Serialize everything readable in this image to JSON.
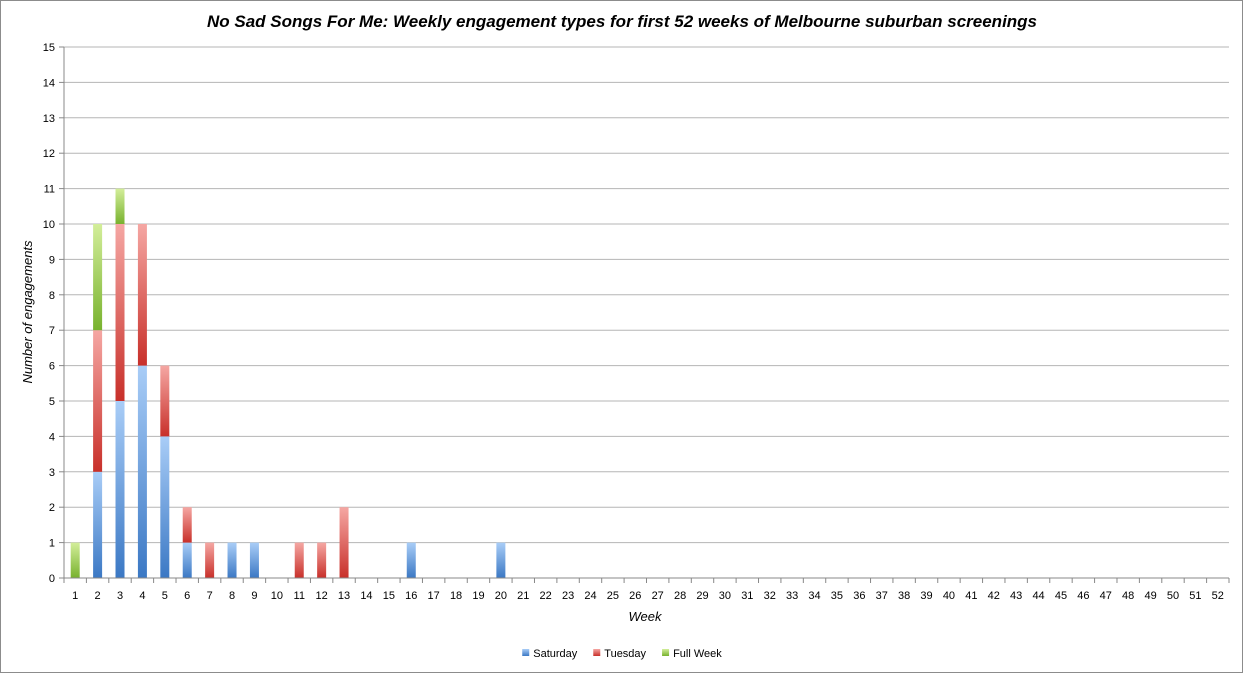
{
  "chart_data": {
    "type": "bar",
    "stacked": true,
    "title": "No Sad Songs For Me: Weekly engagement types for first 52 weeks of Melbourne suburban screenings",
    "xlabel": "Week",
    "ylabel": "Number of engagements",
    "ylim": [
      0,
      15
    ],
    "yticks": [
      0,
      1,
      2,
      3,
      4,
      5,
      6,
      7,
      8,
      9,
      10,
      11,
      12,
      13,
      14,
      15
    ],
    "grid": true,
    "legend_position": "bottom",
    "categories": [
      "1",
      "2",
      "3",
      "4",
      "5",
      "6",
      "7",
      "8",
      "9",
      "10",
      "11",
      "12",
      "13",
      "14",
      "15",
      "16",
      "17",
      "18",
      "19",
      "20",
      "21",
      "22",
      "23",
      "24",
      "25",
      "26",
      "27",
      "28",
      "29",
      "30",
      "31",
      "32",
      "33",
      "34",
      "35",
      "36",
      "37",
      "38",
      "39",
      "40",
      "41",
      "42",
      "43",
      "44",
      "45",
      "46",
      "47",
      "48",
      "49",
      "50",
      "51",
      "52"
    ],
    "series": [
      {
        "name": "Saturday",
        "color": "#4a86d0",
        "values": [
          0,
          3,
          5,
          6,
          4,
          1,
          0,
          1,
          1,
          0,
          0,
          0,
          0,
          0,
          0,
          1,
          0,
          0,
          0,
          1,
          0,
          0,
          0,
          0,
          0,
          0,
          0,
          0,
          0,
          0,
          0,
          0,
          0,
          0,
          0,
          0,
          0,
          0,
          0,
          0,
          0,
          0,
          0,
          0,
          0,
          0,
          0,
          0,
          0,
          0,
          0,
          0
        ]
      },
      {
        "name": "Tuesday",
        "color": "#d9463f",
        "values": [
          0,
          4,
          5,
          4,
          2,
          1,
          1,
          0,
          0,
          0,
          1,
          1,
          2,
          0,
          0,
          0,
          0,
          0,
          0,
          0,
          0,
          0,
          0,
          0,
          0,
          0,
          0,
          0,
          0,
          0,
          0,
          0,
          0,
          0,
          0,
          0,
          0,
          0,
          0,
          0,
          0,
          0,
          0,
          0,
          0,
          0,
          0,
          0,
          0,
          0,
          0,
          0
        ]
      },
      {
        "name": "Full Week",
        "color": "#8cc43f",
        "values": [
          1,
          3,
          1,
          0,
          0,
          0,
          0,
          0,
          0,
          0,
          0,
          0,
          0,
          0,
          0,
          0,
          0,
          0,
          0,
          0,
          0,
          0,
          0,
          0,
          0,
          0,
          0,
          0,
          0,
          0,
          0,
          0,
          0,
          0,
          0,
          0,
          0,
          0,
          0,
          0,
          0,
          0,
          0,
          0,
          0,
          0,
          0,
          0,
          0,
          0,
          0,
          0
        ]
      }
    ]
  }
}
